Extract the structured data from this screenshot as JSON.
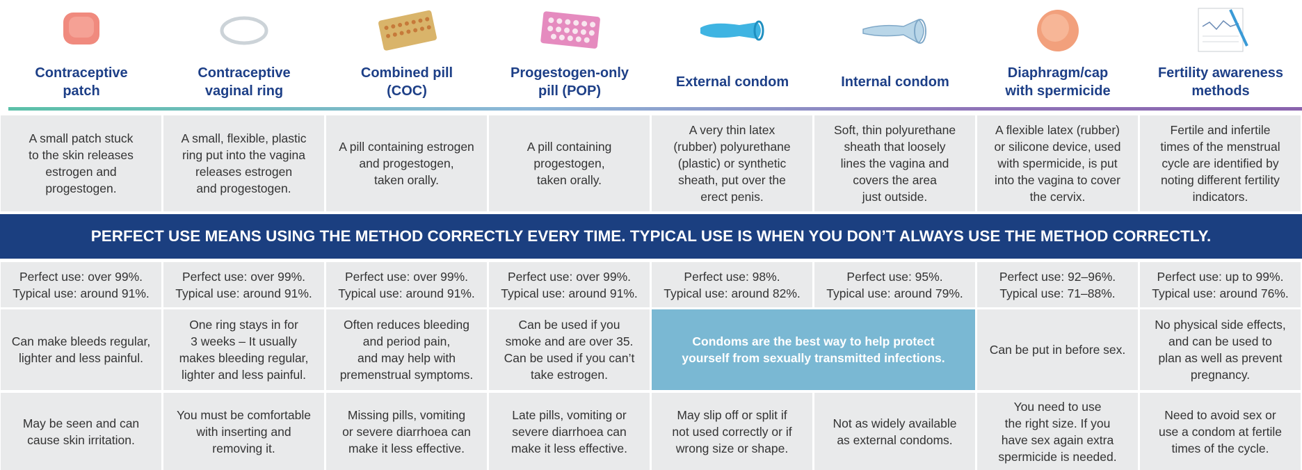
{
  "banner": "PERFECT USE MEANS USING THE METHOD CORRECTLY EVERY TIME. TYPICAL USE IS WHEN YOU DON’T ALWAYS USE THE METHOD CORRECTLY.",
  "condom_advantage": "Condoms are the best way to help protect\nyourself from sexually transmitted infections.",
  "methods": [
    {
      "name": "Contraceptive\npatch",
      "description": "A small patch stuck\nto the skin releases\nestrogen and\nprogestogen.",
      "effectiveness": "Perfect use: over 99%.\nTypical use: around 91%.",
      "advantage": "Can make bleeds regular,\nlighter and less painful.",
      "disadvantage": "May be seen and can\ncause skin irritation."
    },
    {
      "name": "Contraceptive\nvaginal ring",
      "description": "A small, flexible, plastic\nring put into the vagina\nreleases estrogen\nand progestogen.",
      "effectiveness": "Perfect use: over 99%.\nTypical use: around 91%.",
      "advantage": "One ring stays in for\n3 weeks – It usually\nmakes bleeding regular,\nlighter and less painful.",
      "disadvantage": "You must be comfortable\nwith inserting and\nremoving it."
    },
    {
      "name": "Combined pill\n(COC)",
      "description": "A pill containing estrogen\nand progestogen,\ntaken orally.",
      "effectiveness": "Perfect use: over 99%.\nTypical use: around 91%.",
      "advantage": "Often reduces bleeding\nand period pain,\nand may help with\npremenstrual symptoms.",
      "disadvantage": "Missing pills, vomiting\nor severe diarrhoea can\nmake it less effective."
    },
    {
      "name": "Progestogen-only\npill (POP)",
      "description": "A pill containing\nprogestogen,\ntaken orally.",
      "effectiveness": "Perfect use: over 99%.\nTypical use: around 91%.",
      "advantage": "Can be used if you\nsmoke and are over 35.\nCan be used if you can’t\ntake estrogen.",
      "disadvantage": "Late pills, vomiting or\nsevere diarrhoea can\nmake it less effective."
    },
    {
      "name": "External condom",
      "description": "A very thin latex\n(rubber) polyurethane\n(plastic) or synthetic\nsheath, put over the\nerect penis.",
      "effectiveness": "Perfect use: 98%.\nTypical use: around 82%.",
      "disadvantage": "May slip off or split if\nnot used correctly or if\nwrong size or shape."
    },
    {
      "name": "Internal condom",
      "description": "Soft, thin polyurethane\nsheath that loosely\nlines the vagina and\ncovers the area\njust outside.",
      "effectiveness": "Perfect use: 95%.\nTypical use: around 79%.",
      "disadvantage": "Not as widely available\nas external condoms."
    },
    {
      "name": "Diaphragm/cap\nwith spermicide",
      "description": "A flexible latex (rubber)\nor silicone device, used\nwith spermicide, is put\ninto the vagina to cover\nthe cervix.",
      "effectiveness": "Perfect use: 92–96%.\nTypical use: 71–88%.",
      "advantage": "Can be put in before sex.",
      "disadvantage": "You need to use\nthe right size. If you\nhave sex again extra\nspermicide is needed."
    },
    {
      "name": "Fertility awareness\nmethods",
      "description": "Fertile and infertile\ntimes of the menstrual\ncycle are identified by\nnoting different fertility\nindicators.",
      "effectiveness": "Perfect use: up to 99%.\nTypical use: around 76%.",
      "advantage": "No physical side effects,\nand can be used to\nplan as well as prevent\npregnancy.",
      "disadvantage": "Need to avoid sex or\nuse a condom at fertile\ntimes of the cycle."
    }
  ]
}
